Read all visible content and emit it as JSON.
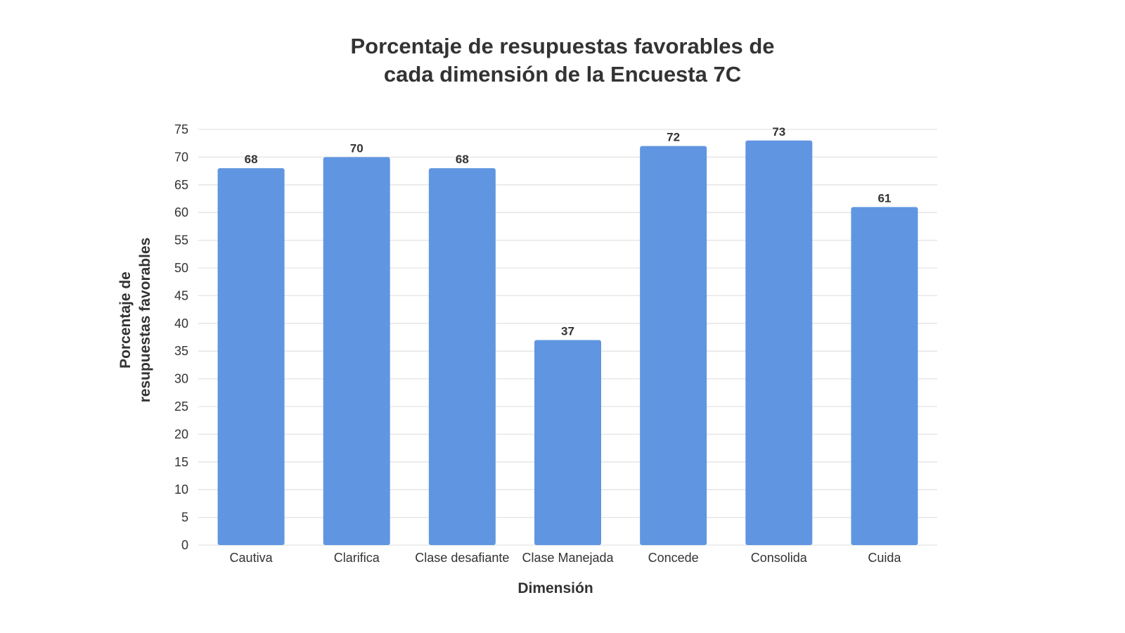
{
  "chart_data": {
    "type": "bar",
    "title_lines": [
      "Porcentaje de resupuestas favorables de",
      "cada dimensión de la Encuesta 7C"
    ],
    "categories": [
      "Cautiva",
      "Clarifica",
      "Clase desafiante",
      "Clase Manejada",
      "Concede",
      "Consolida",
      "Cuida"
    ],
    "values": [
      68,
      70,
      68,
      37,
      72,
      73,
      61
    ],
    "xlabel": "Dimensión",
    "ylabel_lines": [
      "Porcentaje de",
      "resupuestas favorables"
    ],
    "ylim": [
      0,
      75
    ],
    "yticks": [
      "0",
      "5",
      "10",
      "15",
      "20",
      "25",
      "30",
      "35",
      "40",
      "45",
      "50",
      "55",
      "60",
      "65",
      "70",
      "75"
    ],
    "grid": true,
    "bar_color": "#6096E1",
    "grid_color": "#E3E3E3"
  }
}
